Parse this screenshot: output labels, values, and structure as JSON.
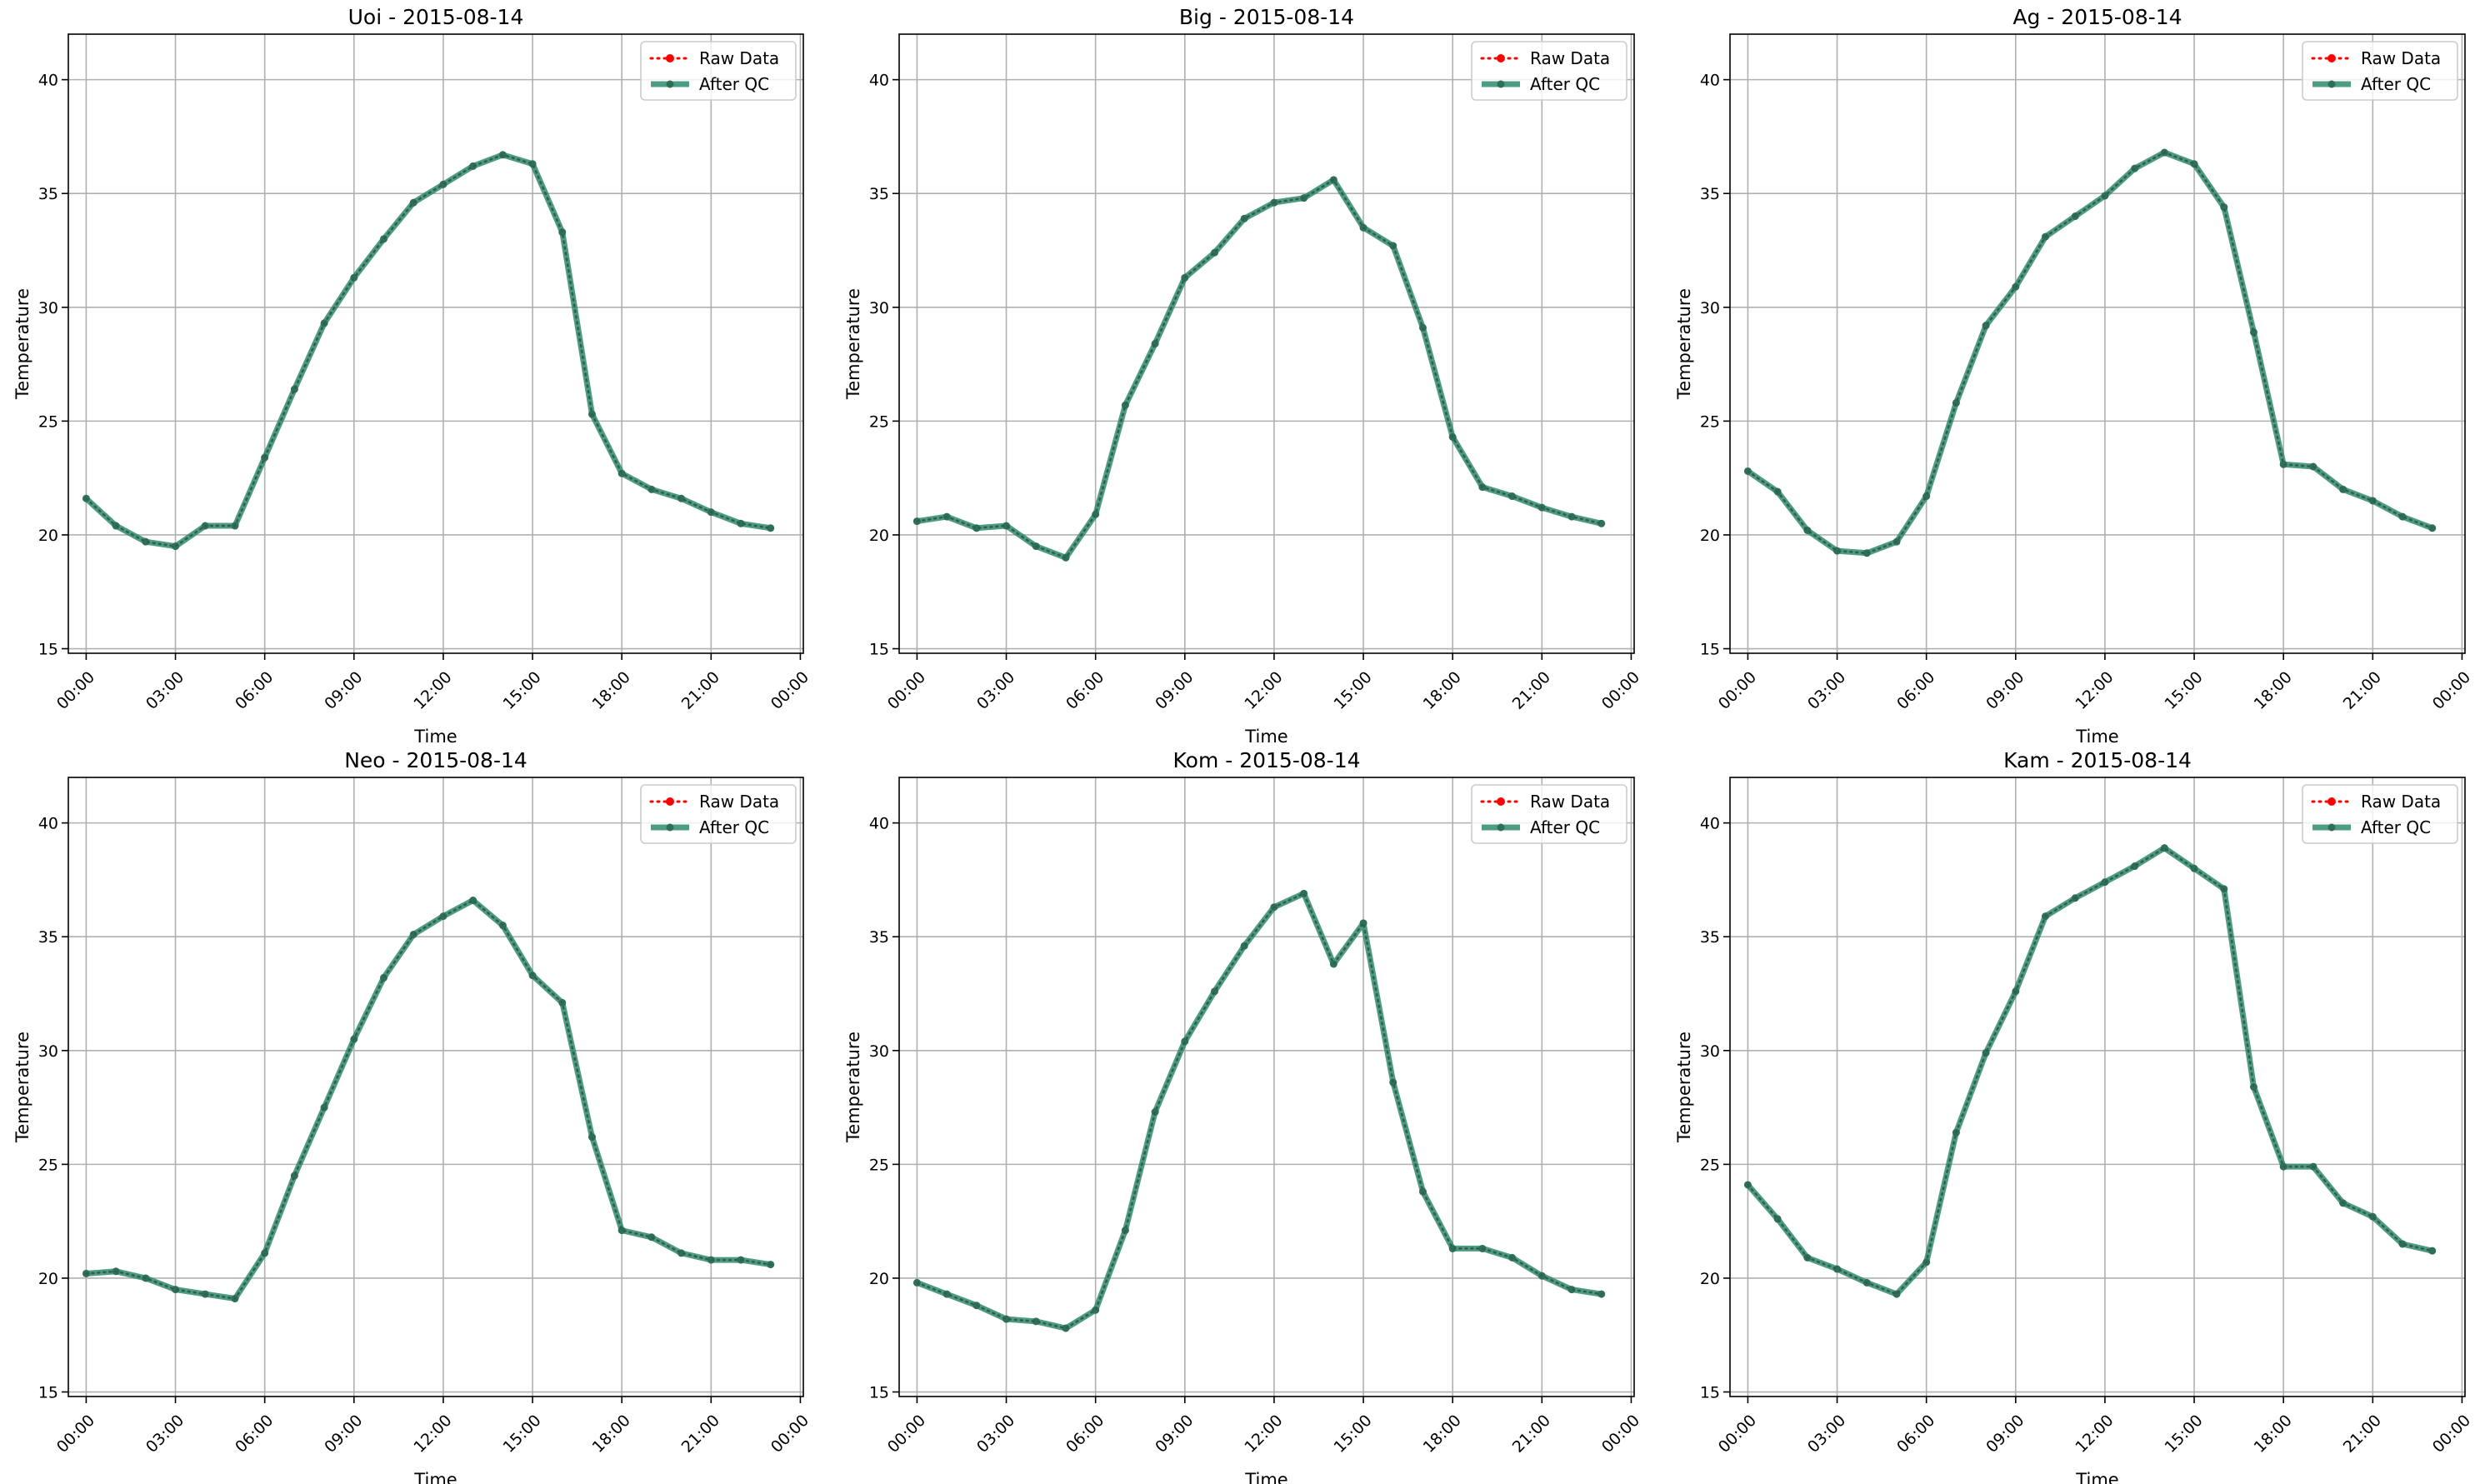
{
  "chart_data": [
    {
      "type": "line",
      "title": "Uoi - 2015-08-14",
      "xlabel": "Time",
      "ylabel": "Temperature",
      "xticks": [
        "00:00",
        "03:00",
        "06:00",
        "09:00",
        "12:00",
        "15:00",
        "18:00",
        "21:00",
        "00:00"
      ],
      "yticks": [
        15,
        20,
        25,
        30,
        35,
        40
      ],
      "ylim": [
        14.8,
        42
      ],
      "xlim_hours": [
        -0.6,
        24.1
      ],
      "grid": true,
      "legend_position": "top-right",
      "x_hours": [
        0,
        1,
        2,
        3,
        4,
        5,
        6,
        7,
        8,
        9,
        10,
        11,
        12,
        13,
        14,
        15,
        16,
        17,
        18,
        19,
        20,
        21,
        22,
        23
      ],
      "series": [
        {
          "name": "Raw Data",
          "color": "#ff0000",
          "style": "dotted",
          "values": [
            21.6,
            20.4,
            19.7,
            19.5,
            20.4,
            20.4,
            23.4,
            26.4,
            29.3,
            31.3,
            33.0,
            34.6,
            35.4,
            36.2,
            36.7,
            36.3,
            33.3,
            25.3,
            22.7,
            22.0,
            21.6,
            21.0,
            20.5,
            20.3
          ]
        },
        {
          "name": "After QC",
          "color": "#2e8b6f",
          "style": "solid",
          "values": [
            21.6,
            20.4,
            19.7,
            19.5,
            20.4,
            20.4,
            23.4,
            26.4,
            29.3,
            31.3,
            33.0,
            34.6,
            35.4,
            36.2,
            36.7,
            36.3,
            33.3,
            25.3,
            22.7,
            22.0,
            21.6,
            21.0,
            20.5,
            20.3
          ]
        }
      ]
    },
    {
      "type": "line",
      "title": "Big - 2015-08-14",
      "xlabel": "Time",
      "ylabel": "Temperature",
      "xticks": [
        "00:00",
        "03:00",
        "06:00",
        "09:00",
        "12:00",
        "15:00",
        "18:00",
        "21:00",
        "00:00"
      ],
      "yticks": [
        15,
        20,
        25,
        30,
        35,
        40
      ],
      "ylim": [
        14.8,
        42
      ],
      "xlim_hours": [
        -0.6,
        24.1
      ],
      "grid": true,
      "legend_position": "top-right",
      "x_hours": [
        0,
        1,
        2,
        3,
        4,
        5,
        6,
        7,
        8,
        9,
        10,
        11,
        12,
        13,
        14,
        15,
        16,
        17,
        18,
        19,
        20,
        21,
        22,
        23
      ],
      "series": [
        {
          "name": "Raw Data",
          "color": "#ff0000",
          "style": "dotted",
          "values": [
            20.6,
            20.8,
            20.3,
            20.4,
            19.5,
            19.0,
            20.9,
            25.7,
            28.4,
            31.3,
            32.4,
            33.9,
            34.6,
            34.8,
            35.6,
            33.5,
            32.7,
            29.1,
            24.3,
            22.1,
            21.7,
            21.2,
            20.8,
            20.5
          ]
        },
        {
          "name": "After QC",
          "color": "#2e8b6f",
          "style": "solid",
          "values": [
            20.6,
            20.8,
            20.3,
            20.4,
            19.5,
            19.0,
            20.9,
            25.7,
            28.4,
            31.3,
            32.4,
            33.9,
            34.6,
            34.8,
            35.6,
            33.5,
            32.7,
            29.1,
            24.3,
            22.1,
            21.7,
            21.2,
            20.8,
            20.5
          ]
        }
      ]
    },
    {
      "type": "line",
      "title": "Ag - 2015-08-14",
      "xlabel": "Time",
      "ylabel": "Temperature",
      "xticks": [
        "00:00",
        "03:00",
        "06:00",
        "09:00",
        "12:00",
        "15:00",
        "18:00",
        "21:00",
        "00:00"
      ],
      "yticks": [
        15,
        20,
        25,
        30,
        35,
        40
      ],
      "ylim": [
        14.8,
        42
      ],
      "xlim_hours": [
        -0.6,
        24.1
      ],
      "grid": true,
      "legend_position": "top-right",
      "x_hours": [
        0,
        1,
        2,
        3,
        4,
        5,
        6,
        7,
        8,
        9,
        10,
        11,
        12,
        13,
        14,
        15,
        16,
        17,
        18,
        19,
        20,
        21,
        22,
        23
      ],
      "series": [
        {
          "name": "Raw Data",
          "color": "#ff0000",
          "style": "dotted",
          "values": [
            22.8,
            21.9,
            20.2,
            19.3,
            19.2,
            19.7,
            21.7,
            25.8,
            29.2,
            30.9,
            33.1,
            34.0,
            34.9,
            36.1,
            36.8,
            36.3,
            34.4,
            28.9,
            23.1,
            23.0,
            22.0,
            21.5,
            20.8,
            20.3
          ]
        },
        {
          "name": "After QC",
          "color": "#2e8b6f",
          "style": "solid",
          "values": [
            22.8,
            21.9,
            20.2,
            19.3,
            19.2,
            19.7,
            21.7,
            25.8,
            29.2,
            30.9,
            33.1,
            34.0,
            34.9,
            36.1,
            36.8,
            36.3,
            34.4,
            28.9,
            23.1,
            23.0,
            22.0,
            21.5,
            20.8,
            20.3
          ]
        }
      ]
    },
    {
      "type": "line",
      "title": "Neo - 2015-08-14",
      "xlabel": "Time",
      "ylabel": "Temperature",
      "xticks": [
        "00:00",
        "03:00",
        "06:00",
        "09:00",
        "12:00",
        "15:00",
        "18:00",
        "21:00",
        "00:00"
      ],
      "yticks": [
        15,
        20,
        25,
        30,
        35,
        40
      ],
      "ylim": [
        14.8,
        42
      ],
      "xlim_hours": [
        -0.6,
        24.1
      ],
      "grid": true,
      "legend_position": "top-right",
      "x_hours": [
        0,
        1,
        2,
        3,
        4,
        5,
        6,
        7,
        8,
        9,
        10,
        11,
        12,
        13,
        14,
        15,
        16,
        17,
        18,
        19,
        20,
        21,
        22,
        23
      ],
      "series": [
        {
          "name": "Raw Data",
          "color": "#ff0000",
          "style": "dotted",
          "values": [
            20.2,
            20.3,
            20.0,
            19.5,
            19.3,
            19.1,
            21.1,
            24.5,
            27.5,
            30.5,
            33.2,
            35.1,
            35.9,
            36.6,
            35.5,
            33.3,
            32.1,
            26.2,
            22.1,
            21.8,
            21.1,
            20.8,
            20.8,
            20.6
          ]
        },
        {
          "name": "After QC",
          "color": "#2e8b6f",
          "style": "solid",
          "values": [
            20.2,
            20.3,
            20.0,
            19.5,
            19.3,
            19.1,
            21.1,
            24.5,
            27.5,
            30.5,
            33.2,
            35.1,
            35.9,
            36.6,
            35.5,
            33.3,
            32.1,
            26.2,
            22.1,
            21.8,
            21.1,
            20.8,
            20.8,
            20.6
          ]
        }
      ]
    },
    {
      "type": "line",
      "title": "Kom - 2015-08-14",
      "xlabel": "Time",
      "ylabel": "Temperature",
      "xticks": [
        "00:00",
        "03:00",
        "06:00",
        "09:00",
        "12:00",
        "15:00",
        "18:00",
        "21:00",
        "00:00"
      ],
      "yticks": [
        15,
        20,
        25,
        30,
        35,
        40
      ],
      "ylim": [
        14.8,
        42
      ],
      "xlim_hours": [
        -0.6,
        24.1
      ],
      "grid": true,
      "legend_position": "top-right",
      "x_hours": [
        0,
        1,
        2,
        3,
        4,
        5,
        6,
        7,
        8,
        9,
        10,
        11,
        12,
        13,
        14,
        15,
        16,
        17,
        18,
        19,
        20,
        21,
        22,
        23
      ],
      "series": [
        {
          "name": "Raw Data",
          "color": "#ff0000",
          "style": "dotted",
          "values": [
            19.8,
            19.3,
            18.8,
            18.2,
            18.1,
            17.8,
            18.6,
            22.1,
            27.3,
            30.4,
            32.6,
            34.6,
            36.3,
            36.9,
            33.8,
            35.6,
            28.6,
            23.8,
            21.3,
            21.3,
            20.9,
            20.1,
            19.5,
            19.3
          ]
        },
        {
          "name": "After QC",
          "color": "#2e8b6f",
          "style": "solid",
          "values": [
            19.8,
            19.3,
            18.8,
            18.2,
            18.1,
            17.8,
            18.6,
            22.1,
            27.3,
            30.4,
            32.6,
            34.6,
            36.3,
            36.9,
            33.8,
            35.6,
            28.6,
            23.8,
            21.3,
            21.3,
            20.9,
            20.1,
            19.5,
            19.3
          ]
        }
      ]
    },
    {
      "type": "line",
      "title": "Kam - 2015-08-14",
      "xlabel": "Time",
      "ylabel": "Temperature",
      "xticks": [
        "00:00",
        "03:00",
        "06:00",
        "09:00",
        "12:00",
        "15:00",
        "18:00",
        "21:00",
        "00:00"
      ],
      "yticks": [
        15,
        20,
        25,
        30,
        35,
        40
      ],
      "ylim": [
        14.8,
        42
      ],
      "xlim_hours": [
        -0.6,
        24.1
      ],
      "grid": true,
      "legend_position": "top-right",
      "x_hours": [
        0,
        1,
        2,
        3,
        4,
        5,
        6,
        7,
        8,
        9,
        10,
        11,
        12,
        13,
        14,
        15,
        16,
        17,
        18,
        19,
        20,
        21,
        22,
        23
      ],
      "series": [
        {
          "name": "Raw Data",
          "color": "#ff0000",
          "style": "dotted",
          "values": [
            24.1,
            22.6,
            20.9,
            20.4,
            19.8,
            19.3,
            20.7,
            26.4,
            29.9,
            32.6,
            35.9,
            36.7,
            37.4,
            38.1,
            38.9,
            38.0,
            37.1,
            28.4,
            24.9,
            24.9,
            23.3,
            22.7,
            21.5,
            21.2
          ]
        },
        {
          "name": "After QC",
          "color": "#2e8b6f",
          "style": "solid",
          "values": [
            24.1,
            22.6,
            20.9,
            20.4,
            19.8,
            19.3,
            20.7,
            26.4,
            29.9,
            32.6,
            35.9,
            36.7,
            37.4,
            38.1,
            38.9,
            38.0,
            37.1,
            28.4,
            24.9,
            24.9,
            23.3,
            22.7,
            21.5,
            21.2
          ]
        }
      ]
    }
  ]
}
